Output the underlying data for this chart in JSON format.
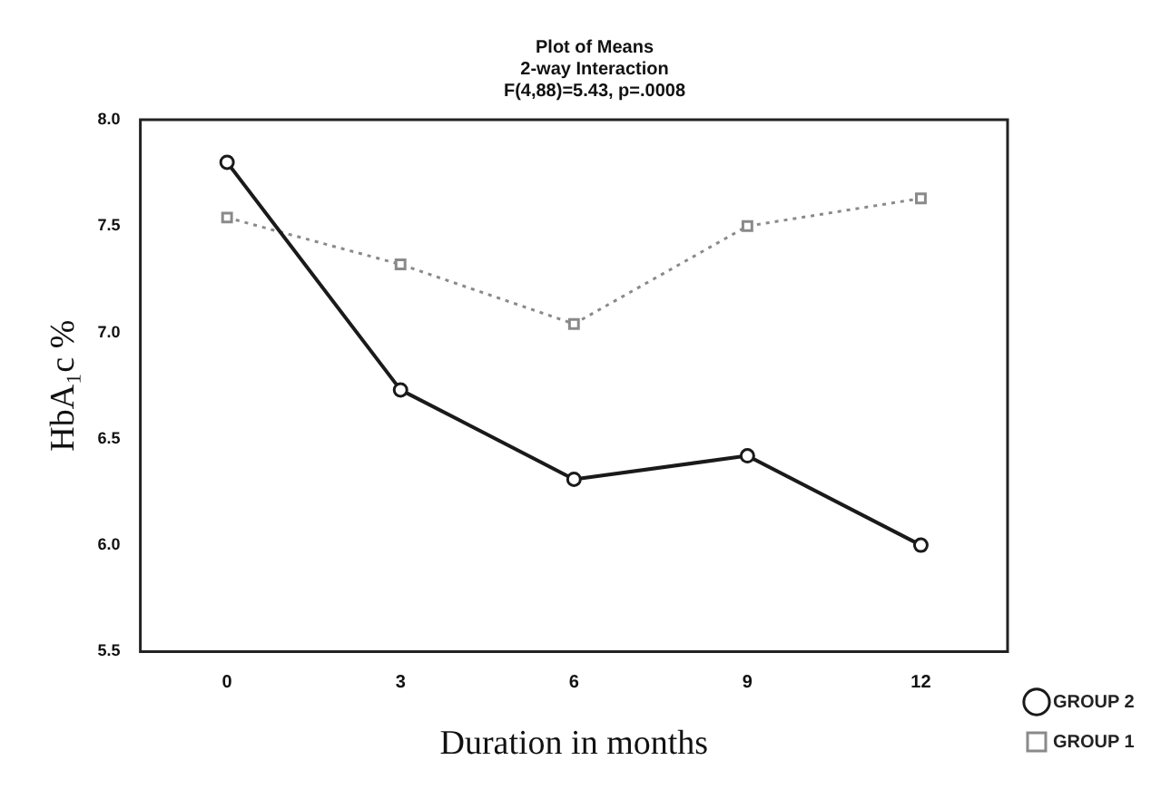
{
  "chart_data": {
    "type": "line",
    "title": "Plot of Means",
    "subtitle": "2-way Interaction",
    "annotations": [
      "F(4,88)=5.43, p=.0008"
    ],
    "xlabel": "Duration in months",
    "ylabel": "HbA₁c %",
    "categories": [
      "0",
      "3",
      "6",
      "9",
      "12"
    ],
    "series": [
      {
        "name": "GROUP 2",
        "color": "#1a1a1a",
        "values": [
          7.8,
          6.73,
          6.31,
          6.42,
          6.0
        ],
        "marker": "circle",
        "line_style": "solid"
      },
      {
        "name": "GROUP 1",
        "color": "#8a8a8a",
        "values": [
          7.54,
          7.32,
          7.04,
          7.5,
          7.63
        ],
        "marker": "square",
        "line_style": "dotted"
      }
    ],
    "ylim": [
      5.5,
      8.0
    ],
    "yticks": [
      5.5,
      {
        "value": 6,
        "label": "6.0"
      },
      6.5,
      {
        "value": 7,
        "label": "7.0"
      },
      7.5,
      {
        "value": 8,
        "label": "8.0"
      }
    ],
    "grid": false,
    "legend": "right"
  }
}
